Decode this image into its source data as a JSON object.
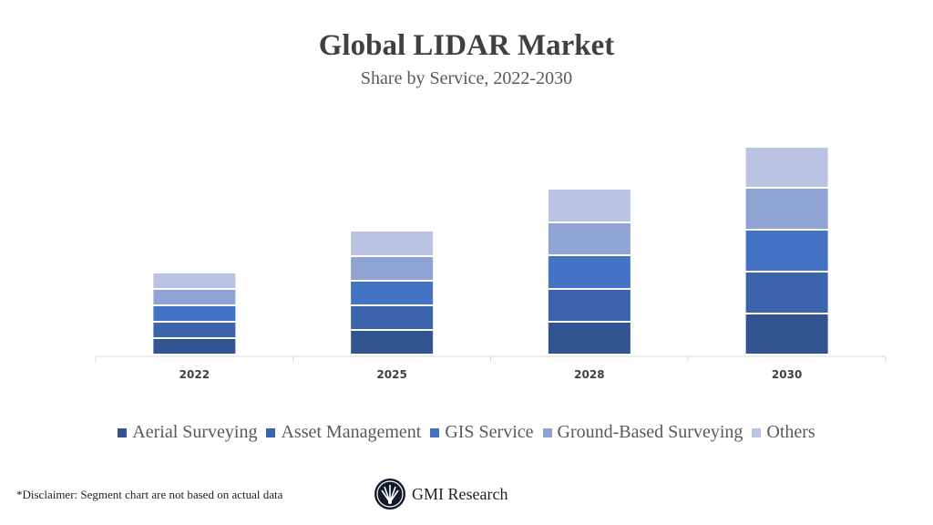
{
  "chart_data": {
    "type": "bar",
    "stacked": true,
    "title": "Global LIDAR Market",
    "subtitle": "Share by Service, 2022-2030",
    "categories": [
      "2022",
      "2025",
      "2028",
      "2030"
    ],
    "series": [
      {
        "name": "Aerial Surveying",
        "color": "#325592",
        "values": [
          18,
          27,
          36,
          45
        ]
      },
      {
        "name": "Asset Management",
        "color": "#3c64ad",
        "values": [
          18,
          27,
          36,
          46
        ]
      },
      {
        "name": "GIS Service",
        "color": "#4472c4",
        "values": [
          18,
          27,
          37,
          46
        ]
      },
      {
        "name": "Ground-Based Surveying",
        "color": "#8fa4d4",
        "values": [
          18,
          27,
          36,
          46
        ]
      },
      {
        "name": "Others",
        "color": "#bac4e2",
        "values": [
          18,
          28,
          37,
          45
        ]
      }
    ],
    "ylim": [
      0,
      250
    ],
    "y_axis_shown": false,
    "grid": false,
    "legend_position": "bottom"
  },
  "footer": {
    "disclaimer": "*Disclaimer:  Segment chart are not based on actual data",
    "logo_text": "GMI Research"
  }
}
